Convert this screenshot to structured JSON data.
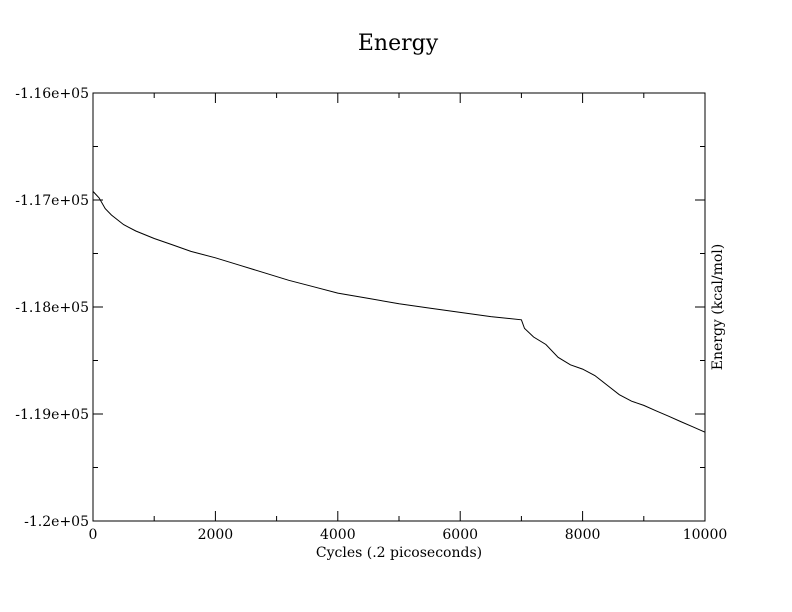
{
  "chart_data": {
    "type": "line",
    "title": "Energy",
    "xlabel": "Cycles (.2 picoseconds)",
    "ylabel": "Energy (kcal/mol)",
    "xlim": [
      0,
      10000
    ],
    "ylim": [
      -120000,
      -116000
    ],
    "x_ticks": [
      0,
      2000,
      4000,
      6000,
      8000,
      10000
    ],
    "x_tick_labels": [
      "0",
      "2000",
      "4000",
      "6000",
      "8000",
      "10000"
    ],
    "y_ticks": [
      -116000,
      -117000,
      -118000,
      -119000,
      -120000
    ],
    "y_tick_labels": [
      "-1.16e+05",
      "-1.17e+05",
      "-1.18e+05",
      "-1.19e+05",
      "-1.2e+05"
    ],
    "grid": false,
    "legend": "none",
    "series": [
      {
        "color": "#000000",
        "x": [
          0,
          100,
          200,
          300,
          500,
          700,
          1000,
          1300,
          1600,
          2000,
          2400,
          2800,
          3200,
          3600,
          4000,
          4500,
          5000,
          5500,
          6000,
          6500,
          7000,
          7050,
          7200,
          7400,
          7600,
          7800,
          8000,
          8200,
          8400,
          8600,
          8800,
          9000,
          9200,
          9400,
          9600,
          9800,
          10000
        ],
        "y": [
          -116920,
          -116980,
          -117080,
          -117140,
          -117230,
          -117290,
          -117360,
          -117420,
          -117480,
          -117540,
          -117610,
          -117680,
          -117750,
          -117810,
          -117870,
          -117920,
          -117970,
          -118010,
          -118050,
          -118090,
          -118120,
          -118200,
          -118280,
          -118350,
          -118470,
          -118540,
          -118580,
          -118640,
          -118730,
          -118820,
          -118880,
          -118920,
          -118970,
          -119020,
          -119070,
          -119120,
          -119170
        ]
      }
    ]
  }
}
